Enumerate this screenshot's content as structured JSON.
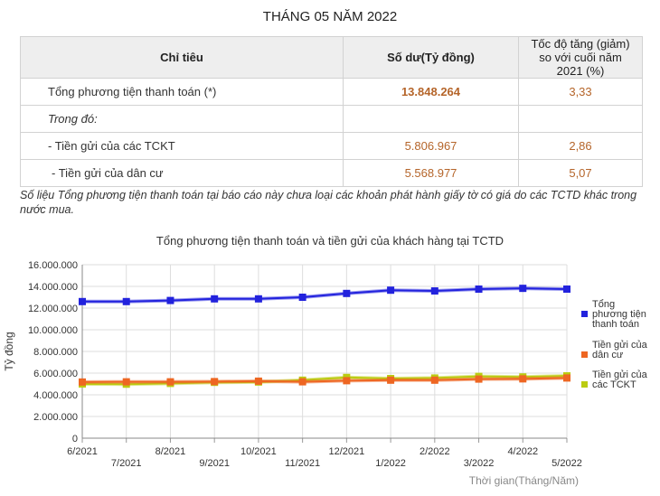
{
  "page_title": "THÁNG 05 NĂM 2022",
  "table": {
    "headers": [
      "Chỉ tiêu",
      "Số dư(Tỷ đồng)",
      "Tốc độ tăng (giảm) so với cuối năm 2021 (%)"
    ],
    "rows": [
      {
        "label": "Tổng phương tiện thanh toán (*)",
        "balance": "13.848.264",
        "growth": "3,33"
      },
      {
        "label": "Trong đó:",
        "balance": "",
        "growth": ""
      },
      {
        "label": "- Tiền gửi của các TCKT",
        "balance": "5.806.967",
        "growth": "2,86"
      },
      {
        "label": "- Tiền gửi của dân cư",
        "balance": "5.568.977",
        "growth": "5,07"
      }
    ]
  },
  "note": "Số liệu Tổng phương tiện thanh toán tại báo cáo này chưa loại các khoản phát hành giấy tờ có giá do các TCTD khác trong nước mua.",
  "chart_data": {
    "type": "line",
    "title": "Tổng phương tiện thanh toán và tiền gửi của khách hàng tại TCTD",
    "xlabel": "Thời gian(Tháng/Năm)",
    "ylabel": "Tỷ đồng",
    "ylim": [
      0,
      16000000
    ],
    "yticks": [
      "0",
      "2.000.000",
      "4.000.000",
      "6.000.000",
      "8.000.000",
      "10.000.000",
      "12.000.000",
      "14.000.000",
      "16.000.000"
    ],
    "categories": [
      "6/2021",
      "7/2021",
      "8/2021",
      "9/2021",
      "10/2021",
      "11/2021",
      "12/2021",
      "1/2022",
      "2/2022",
      "3/2022",
      "4/2022",
      "5/2022"
    ],
    "grid": true,
    "legend_position": "right",
    "series": [
      {
        "name": "Tổng phương tiện thanh toán",
        "color": "#2222dd",
        "values": [
          12600000,
          12600000,
          12700000,
          12850000,
          12850000,
          13000000,
          13350000,
          13650000,
          13580000,
          13750000,
          13820000,
          13750000
        ]
      },
      {
        "name": "Tiền gửi của dân cư",
        "color": "#ee6622",
        "values": [
          5180000,
          5200000,
          5200000,
          5220000,
          5260000,
          5200000,
          5300000,
          5350000,
          5350000,
          5450000,
          5470000,
          5550000
        ]
      },
      {
        "name": "Tiền gửi của các TCKT",
        "color": "#bbcc11",
        "values": [
          5000000,
          4980000,
          5050000,
          5150000,
          5180000,
          5350000,
          5600000,
          5500000,
          5550000,
          5700000,
          5650000,
          5750000
        ]
      }
    ],
    "legend_labels": [
      [
        "Tổng",
        "phương tiện",
        "thanh toán"
      ],
      [
        "Tiền gửi của",
        "dân cư"
      ],
      [
        "Tiền gửi của",
        "các TCKT"
      ]
    ]
  }
}
